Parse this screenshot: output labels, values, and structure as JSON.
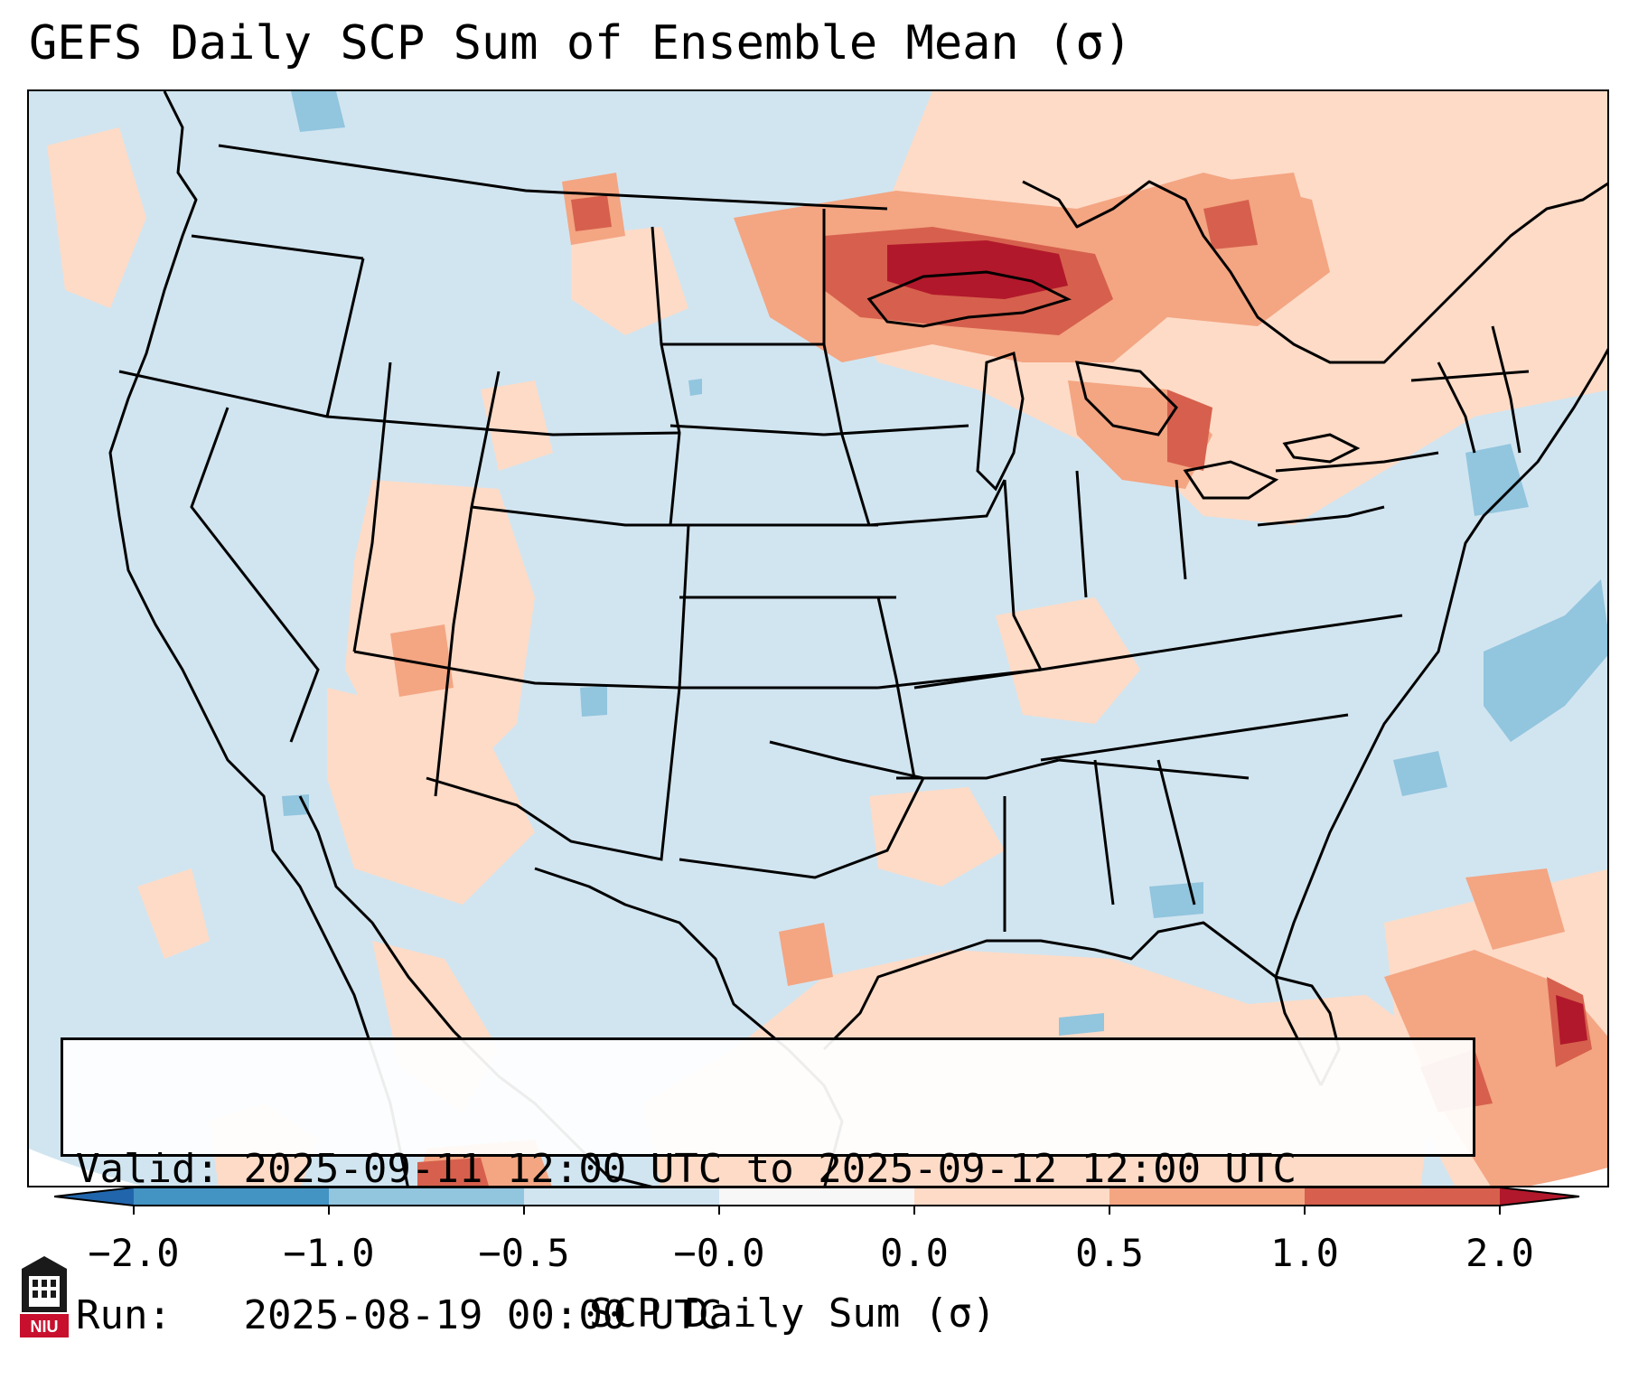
{
  "title": "GEFS Daily SCP Sum of Ensemble Mean (σ)",
  "info": {
    "valid_label": "Valid:",
    "valid_value": "2025-09-11 12:00 UTC to 2025-09-12 12:00 UTC",
    "run_label": "Run:",
    "run_value": "2025-08-19 00:00 UTC"
  },
  "colorbar": {
    "ticks": [
      "−2.0",
      "−1.0",
      "−0.5",
      "−0.0",
      "0.0",
      "0.5",
      "1.0",
      "2.0"
    ],
    "label": "SCP Daily Sum (σ)",
    "colors": [
      "#4393c3",
      "#92c5de",
      "#d1e5f0",
      "#f7f7f7",
      "#fddbc7",
      "#f4a582",
      "#d6604d"
    ],
    "extend_low_color": "#2166ac",
    "extend_high_color": "#b2182b"
  },
  "logo": {
    "text": "NIU"
  },
  "map": {
    "background_color": "#d1e5f0",
    "anomaly_regions": [
      {
        "name": "upper-midwest-lake-superior",
        "level": "2.0"
      },
      {
        "name": "great-lakes-michigan",
        "level": "1.0"
      },
      {
        "name": "ontario-quebec",
        "level": "0.5"
      },
      {
        "name": "intermountain-west",
        "level": "0.5"
      },
      {
        "name": "gulf-of-mexico",
        "level": "0.0"
      },
      {
        "name": "caribbean-bahamas",
        "level": "1.0"
      },
      {
        "name": "western-atlantic",
        "level": "−0.5"
      }
    ]
  }
}
